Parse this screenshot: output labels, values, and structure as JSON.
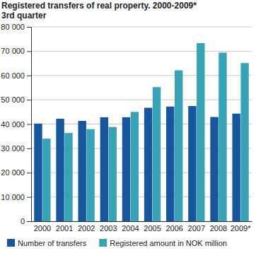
{
  "chart_data": {
    "type": "bar",
    "title": "Registered transfers of real property. 2000-2009*",
    "subtitle": "3rd quarter",
    "categories": [
      "2000",
      "2001",
      "2002",
      "2003",
      "2004",
      "2005",
      "2006",
      "2007",
      "2008",
      "2009*"
    ],
    "series": [
      {
        "name": "Number of transfers",
        "color": "#17559c",
        "values": [
          40200,
          42200,
          41300,
          42800,
          42800,
          46700,
          47200,
          47400,
          42900,
          44300
        ]
      },
      {
        "name": "Registered amount in NOK million",
        "color": "#38a3b6",
        "values": [
          34000,
          36300,
          37900,
          38800,
          45000,
          55200,
          62100,
          73300,
          69400,
          65100
        ]
      }
    ],
    "ylim": [
      0,
      80000
    ],
    "yticks": [
      0,
      {
        "value": 10000,
        "label": "10 000"
      },
      {
        "value": 20000,
        "label": "20 000"
      },
      {
        "value": 30000,
        "label": "30 000"
      },
      {
        "value": 40000,
        "label": "40 000"
      },
      {
        "value": 50000,
        "label": "50 000"
      },
      {
        "value": 60000,
        "label": "60 000"
      },
      {
        "value": 70000,
        "label": "70 000"
      },
      {
        "value": 80000,
        "label": "80 000"
      }
    ],
    "grid": true,
    "legend": "bottom"
  }
}
